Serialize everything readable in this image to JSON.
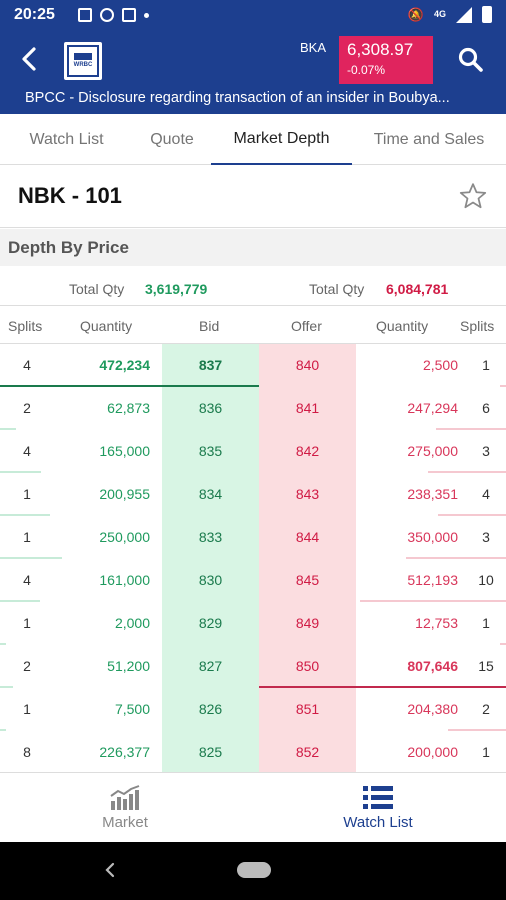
{
  "status_bar": {
    "time": "20:25",
    "network": "4G"
  },
  "header": {
    "logo_text": "WRBC",
    "index": {
      "name": "BKA",
      "value": "6,308.97",
      "change": "-0.07%",
      "color": "#e0245e"
    },
    "ticker": "BPCC - Disclosure regarding transaction of an insider in Boubya..."
  },
  "tabs": [
    {
      "label": "Watch List",
      "active": false
    },
    {
      "label": "Quote",
      "active": false
    },
    {
      "label": "Market Depth",
      "active": true
    },
    {
      "label": "Time and Sales",
      "active": false
    }
  ],
  "symbol": "NBK - 101",
  "section_title": "Depth By Price",
  "totals": {
    "bid_label": "Total Qty",
    "bid_value": "3,619,779",
    "offer_label": "Total Qty",
    "offer_value": "6,084,781"
  },
  "columns": [
    "Splits",
    "Quantity",
    "Bid",
    "Offer",
    "Quantity",
    "Splits"
  ],
  "depth_rows": [
    {
      "bid_splits": "4",
      "bid_qty": "472,234",
      "bid": "837",
      "offer": "840",
      "offer_qty": "2,500",
      "offer_splits": "1"
    },
    {
      "bid_splits": "2",
      "bid_qty": "62,873",
      "bid": "836",
      "offer": "841",
      "offer_qty": "247,294",
      "offer_splits": "6"
    },
    {
      "bid_splits": "4",
      "bid_qty": "165,000",
      "bid": "835",
      "offer": "842",
      "offer_qty": "275,000",
      "offer_splits": "3"
    },
    {
      "bid_splits": "1",
      "bid_qty": "200,955",
      "bid": "834",
      "offer": "843",
      "offer_qty": "238,351",
      "offer_splits": "4"
    },
    {
      "bid_splits": "1",
      "bid_qty": "250,000",
      "bid": "833",
      "offer": "844",
      "offer_qty": "350,000",
      "offer_splits": "3"
    },
    {
      "bid_splits": "4",
      "bid_qty": "161,000",
      "bid": "830",
      "offer": "845",
      "offer_qty": "512,193",
      "offer_splits": "10"
    },
    {
      "bid_splits": "1",
      "bid_qty": "2,000",
      "bid": "829",
      "offer": "849",
      "offer_qty": "12,753",
      "offer_splits": "1"
    },
    {
      "bid_splits": "2",
      "bid_qty": "51,200",
      "bid": "827",
      "offer": "850",
      "offer_qty": "807,646",
      "offer_splits": "15"
    },
    {
      "bid_splits": "1",
      "bid_qty": "7,500",
      "bid": "826",
      "offer": "851",
      "offer_qty": "204,380",
      "offer_splits": "2"
    },
    {
      "bid_splits": "8",
      "bid_qty": "226,377",
      "bid": "825",
      "offer": "852",
      "offer_qty": "200,000",
      "offer_splits": "1"
    }
  ],
  "bottom_nav": [
    {
      "label": "Market",
      "icon": "chart-icon",
      "active": false
    },
    {
      "label": "Watch List",
      "icon": "list-icon",
      "active": true
    }
  ],
  "colors": {
    "primary": "#1d3f8f",
    "bid_bg": "#d8f5e4",
    "offer_bg": "#fbdde0",
    "bid_text": "#1a7a4c",
    "offer_text": "#d01b45"
  }
}
